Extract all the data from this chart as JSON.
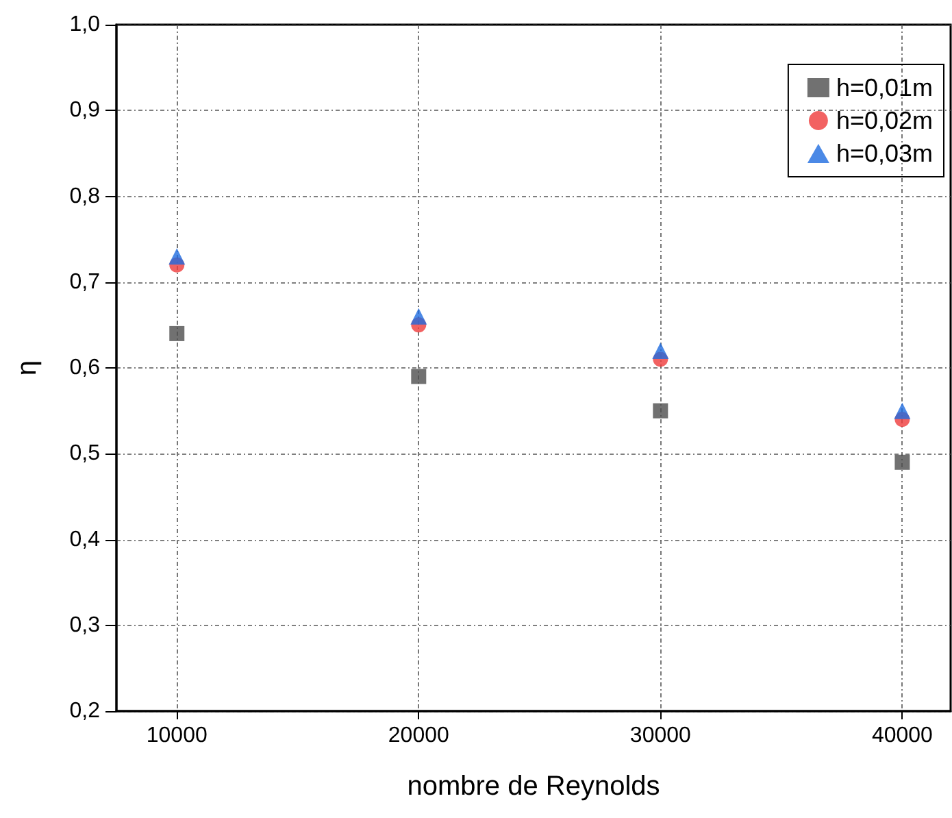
{
  "chart_data": {
    "type": "scatter",
    "xlabel": "nombre de Reynolds",
    "ylabel": "η",
    "x": [
      10000,
      20000,
      30000,
      40000
    ],
    "series": [
      {
        "name": "h=0,01m",
        "color": "#4d4d4d",
        "marker": "square",
        "values": [
          0.64,
          0.59,
          0.55,
          0.49
        ]
      },
      {
        "name": "h=0,02m",
        "color": "#ef3b3b",
        "marker": "circle",
        "values": [
          0.72,
          0.65,
          0.61,
          0.54
        ]
      },
      {
        "name": "h=0,03m",
        "color": "#1e6be0",
        "marker": "triangle",
        "values": [
          0.73,
          0.66,
          0.62,
          0.55
        ]
      }
    ],
    "xlim": [
      7500,
      42000
    ],
    "xticks": [
      10000,
      20000,
      30000,
      40000
    ],
    "ylim": [
      0.2,
      1.0
    ],
    "yticks": [
      {
        "value": 0.2,
        "label": "0,2"
      },
      {
        "value": 0.3,
        "label": "0,3"
      },
      {
        "value": 0.4,
        "label": "0,4"
      },
      {
        "value": 0.5,
        "label": "0,5"
      },
      {
        "value": 0.6,
        "label": "0,6"
      },
      {
        "value": 0.7,
        "label": "0,7"
      },
      {
        "value": 0.8,
        "label": "0,8"
      },
      {
        "value": 0.9,
        "label": "0,9"
      },
      {
        "value": 1.0,
        "label": "1,0"
      }
    ],
    "grid": true,
    "legend": "top right"
  }
}
